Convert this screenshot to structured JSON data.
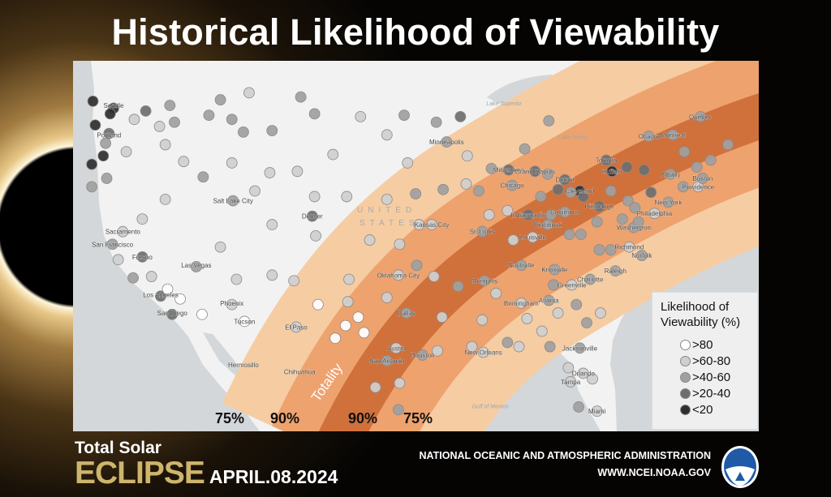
{
  "title": "Historical Likelihood of Viewability",
  "map": {
    "country_label_1": "UNITED",
    "country_label_2": "STATES",
    "water_labels": [
      {
        "name": "Lake Superior",
        "lon": -88.3,
        "lat": 47.6
      },
      {
        "name": "Lake Huron",
        "lon": -82.3,
        "lat": 45.2
      },
      {
        "name": "Gulf of Mexico",
        "lon": -89.5,
        "lat": 26.0
      }
    ],
    "band_labels": {
      "outer_left": "75%",
      "inner_left": "90%",
      "center": "Totality",
      "inner_right": "90%",
      "outer_right": "75%"
    },
    "band_colors": {
      "75": "#f6cca2",
      "90": "#eea26e",
      "totality": "#d0713c"
    },
    "land_color": "#f2f2f2",
    "water_color": "#d3d7d9",
    "cities": [
      {
        "name": "Seattle",
        "lon": -122.3,
        "lat": 47.6
      },
      {
        "name": "Portland",
        "lon": -122.7,
        "lat": 45.5
      },
      {
        "name": "Sacramento",
        "lon": -121.5,
        "lat": 38.6
      },
      {
        "name": "San Francisco",
        "lon": -122.4,
        "lat": 37.7
      },
      {
        "name": "Fresno",
        "lon": -119.8,
        "lat": 36.8
      },
      {
        "name": "Las Vegas",
        "lon": -115.1,
        "lat": 36.2
      },
      {
        "name": "Los Angeles",
        "lon": -118.2,
        "lat": 34.1
      },
      {
        "name": "San Diego",
        "lon": -117.2,
        "lat": 32.8
      },
      {
        "name": "Phoenix",
        "lon": -112.0,
        "lat": 33.5
      },
      {
        "name": "Tucson",
        "lon": -110.9,
        "lat": 32.2
      },
      {
        "name": "El Paso",
        "lon": -106.4,
        "lat": 31.8
      },
      {
        "name": "Hermosillo",
        "lon": -111.0,
        "lat": 29.1
      },
      {
        "name": "Chihuahua",
        "lon": -106.1,
        "lat": 28.6
      },
      {
        "name": "Salt Lake City",
        "lon": -111.9,
        "lat": 40.8
      },
      {
        "name": "Denver",
        "lon": -105.0,
        "lat": 39.7
      },
      {
        "name": "Minneapolis",
        "lon": -93.3,
        "lat": 45.0
      },
      {
        "name": "Kansas City",
        "lon": -94.6,
        "lat": 39.1
      },
      {
        "name": "St. Louis",
        "lon": -90.2,
        "lat": 38.6
      },
      {
        "name": "Oklahoma City",
        "lon": -97.5,
        "lat": 35.5
      },
      {
        "name": "Dallas",
        "lon": -96.8,
        "lat": 32.8
      },
      {
        "name": "Austin",
        "lon": -97.7,
        "lat": 30.3
      },
      {
        "name": "San Antonio",
        "lon": -98.5,
        "lat": 29.4
      },
      {
        "name": "Houston",
        "lon": -95.4,
        "lat": 29.8
      },
      {
        "name": "New Orleans",
        "lon": -90.1,
        "lat": 30.0
      },
      {
        "name": "Memphis",
        "lon": -90.0,
        "lat": 35.1
      },
      {
        "name": "Nashville",
        "lon": -86.8,
        "lat": 36.2
      },
      {
        "name": "Knoxville",
        "lon": -83.9,
        "lat": 35.9
      },
      {
        "name": "Birmingham",
        "lon": -86.8,
        "lat": 33.5
      },
      {
        "name": "Atlanta",
        "lon": -84.4,
        "lat": 33.7
      },
      {
        "name": "Charlotte",
        "lon": -80.8,
        "lat": 35.2
      },
      {
        "name": "Greenville",
        "lon": -82.4,
        "lat": 34.8
      },
      {
        "name": "Raleigh",
        "lon": -78.6,
        "lat": 35.8
      },
      {
        "name": "Richmond",
        "lon": -77.4,
        "lat": 37.5
      },
      {
        "name": "Norfolk",
        "lon": -76.3,
        "lat": 36.9
      },
      {
        "name": "Washington",
        "lon": -77.0,
        "lat": 38.9
      },
      {
        "name": "Philadelphia",
        "lon": -75.2,
        "lat": 39.9
      },
      {
        "name": "New York",
        "lon": -74.0,
        "lat": 40.7
      },
      {
        "name": "Providence",
        "lon": -71.4,
        "lat": 41.8
      },
      {
        "name": "Boston",
        "lon": -71.0,
        "lat": 42.4
      },
      {
        "name": "Albany",
        "lon": -73.8,
        "lat": 42.7
      },
      {
        "name": "Buffalo",
        "lon": -78.9,
        "lat": 42.9
      },
      {
        "name": "Toronto",
        "lon": -79.4,
        "lat": 43.7
      },
      {
        "name": "Ottawa",
        "lon": -75.7,
        "lat": 45.4
      },
      {
        "name": "Montreal",
        "lon": -73.6,
        "lat": 45.5
      },
      {
        "name": "Quebec",
        "lon": -71.2,
        "lat": 46.8
      },
      {
        "name": "Pittsburgh",
        "lon": -80.0,
        "lat": 40.4
      },
      {
        "name": "Cleveland",
        "lon": -81.7,
        "lat": 41.5
      },
      {
        "name": "Detroit",
        "lon": -83.0,
        "lat": 42.3
      },
      {
        "name": "Columbus",
        "lon": -83.0,
        "lat": 40.0
      },
      {
        "name": "Cincinnati",
        "lon": -84.5,
        "lat": 39.1
      },
      {
        "name": "Louisville",
        "lon": -85.8,
        "lat": 38.2
      },
      {
        "name": "Indianapolis",
        "lon": -86.2,
        "lat": 39.8
      },
      {
        "name": "Chicago",
        "lon": -87.6,
        "lat": 41.9
      },
      {
        "name": "Milwaukee",
        "lon": -87.9,
        "lat": 43.0
      },
      {
        "name": "Grand Rapids",
        "lon": -85.6,
        "lat": 42.9
      },
      {
        "name": "Jacksonville",
        "lon": -81.7,
        "lat": 30.3
      },
      {
        "name": "Orlando",
        "lon": -81.4,
        "lat": 28.5
      },
      {
        "name": "Tampa",
        "lon": -82.5,
        "lat": 27.9
      },
      {
        "name": "Miami",
        "lon": -80.2,
        "lat": 25.8
      }
    ],
    "stations_format": "lon, lat, likelihood category index",
    "stations": [
      [
        -124.1,
        47.9,
        4
      ],
      [
        -122.3,
        47.4,
        4
      ],
      [
        -122.6,
        47.0,
        4
      ],
      [
        -122.7,
        45.6,
        3
      ],
      [
        -123.9,
        46.2,
        4
      ],
      [
        -123.0,
        44.9,
        2
      ],
      [
        -123.2,
        44.0,
        4
      ],
      [
        -124.2,
        43.4,
        4
      ],
      [
        -124.2,
        41.8,
        2
      ],
      [
        -122.9,
        42.4,
        2
      ],
      [
        -117.4,
        47.6,
        2
      ],
      [
        -119.5,
        47.2,
        3
      ],
      [
        -120.5,
        46.6,
        1
      ],
      [
        -118.3,
        46.1,
        1
      ],
      [
        -117.0,
        46.4,
        2
      ],
      [
        -121.2,
        44.3,
        1
      ],
      [
        -117.8,
        44.8,
        1
      ],
      [
        -116.2,
        43.6,
        1
      ],
      [
        -112.0,
        43.5,
        1
      ],
      [
        -114.5,
        42.5,
        2
      ],
      [
        -117.8,
        40.9,
        1
      ],
      [
        -119.8,
        39.5,
        1
      ],
      [
        -121.5,
        38.6,
        1
      ],
      [
        -122.4,
        37.7,
        2
      ],
      [
        -121.9,
        36.6,
        1
      ],
      [
        -119.8,
        36.8,
        3
      ],
      [
        -120.6,
        35.3,
        2
      ],
      [
        -119.0,
        35.4,
        1
      ],
      [
        -118.2,
        34.0,
        3
      ],
      [
        -117.2,
        32.7,
        3
      ],
      [
        -116.5,
        33.8,
        0
      ],
      [
        -117.6,
        34.5,
        0
      ],
      [
        -115.1,
        36.1,
        2
      ],
      [
        -114.6,
        32.7,
        0
      ],
      [
        -112.0,
        33.4,
        1
      ],
      [
        -110.9,
        32.2,
        0
      ],
      [
        -111.6,
        35.2,
        1
      ],
      [
        -108.5,
        35.5,
        1
      ],
      [
        -106.6,
        35.1,
        1
      ],
      [
        -106.4,
        31.8,
        1
      ],
      [
        -104.5,
        33.4,
        0
      ],
      [
        -102.1,
        31.9,
        0
      ],
      [
        -101.8,
        35.2,
        1
      ],
      [
        -103.0,
        31.0,
        0
      ],
      [
        -101.0,
        32.5,
        0
      ],
      [
        -114.0,
        46.9,
        2
      ],
      [
        -112.0,
        46.6,
        2
      ],
      [
        -111.0,
        45.7,
        2
      ],
      [
        -108.5,
        45.8,
        2
      ],
      [
        -106.0,
        48.2,
        2
      ],
      [
        -104.8,
        47.0,
        2
      ],
      [
        -110.5,
        48.5,
        1
      ],
      [
        -113.0,
        48.0,
        2
      ],
      [
        -100.8,
        46.8,
        1
      ],
      [
        -97.0,
        46.9,
        2
      ],
      [
        -103.2,
        44.1,
        1
      ],
      [
        -98.5,
        45.5,
        1
      ],
      [
        -96.7,
        43.5,
        1
      ],
      [
        -106.3,
        42.9,
        1
      ],
      [
        -104.8,
        41.1,
        1
      ],
      [
        -108.7,
        42.8,
        1
      ],
      [
        -110.0,
        41.5,
        1
      ],
      [
        -105.0,
        39.7,
        3
      ],
      [
        -108.5,
        39.1,
        1
      ],
      [
        -104.7,
        38.3,
        1
      ],
      [
        -111.9,
        40.8,
        2
      ],
      [
        -113.0,
        37.5,
        1
      ],
      [
        -102.0,
        41.1,
        1
      ],
      [
        -98.5,
        40.9,
        1
      ],
      [
        -96.0,
        41.3,
        2
      ],
      [
        -100.0,
        38.0,
        1
      ],
      [
        -97.4,
        37.7,
        1
      ],
      [
        -95.7,
        39.1,
        1
      ],
      [
        -94.6,
        39.1,
        1
      ],
      [
        -97.5,
        35.5,
        1
      ],
      [
        -95.9,
        36.2,
        2
      ],
      [
        -98.5,
        33.9,
        1
      ],
      [
        -101.9,
        33.6,
        1
      ],
      [
        -96.8,
        32.8,
        2
      ],
      [
        -97.7,
        30.3,
        1
      ],
      [
        -98.5,
        29.4,
        2
      ],
      [
        -95.4,
        29.8,
        2
      ],
      [
        -99.5,
        27.5,
        1
      ],
      [
        -97.5,
        25.9,
        2
      ],
      [
        -97.4,
        27.8,
        1
      ],
      [
        -100.5,
        31.4,
        0
      ],
      [
        -94.1,
        30.1,
        1
      ],
      [
        -93.7,
        32.5,
        1
      ],
      [
        -93.3,
        45.0,
        2
      ],
      [
        -92.1,
        46.8,
        3
      ],
      [
        -94.2,
        46.4,
        2
      ],
      [
        -91.5,
        44.0,
        1
      ],
      [
        -93.6,
        41.6,
        2
      ],
      [
        -91.6,
        42.0,
        1
      ],
      [
        -90.5,
        41.5,
        2
      ],
      [
        -89.4,
        43.1,
        2
      ],
      [
        -87.9,
        43.0,
        3
      ],
      [
        -87.6,
        41.9,
        2
      ],
      [
        -85.6,
        42.9,
        3
      ],
      [
        -84.5,
        42.7,
        2
      ],
      [
        -83.0,
        42.3,
        3
      ],
      [
        -84.4,
        46.5,
        2
      ],
      [
        -86.5,
        44.5,
        2
      ],
      [
        -89.6,
        39.8,
        1
      ],
      [
        -90.2,
        38.6,
        2
      ],
      [
        -88.0,
        40.1,
        1
      ],
      [
        -86.2,
        39.8,
        3
      ],
      [
        -85.1,
        41.1,
        2
      ],
      [
        -84.5,
        39.1,
        2
      ],
      [
        -83.0,
        40.0,
        2
      ],
      [
        -81.7,
        41.5,
        4
      ],
      [
        -80.0,
        40.4,
        3
      ],
      [
        -85.8,
        38.2,
        1
      ],
      [
        -87.5,
        38.0,
        1
      ],
      [
        -90.0,
        35.1,
        2
      ],
      [
        -86.8,
        36.2,
        2
      ],
      [
        -83.9,
        35.9,
        2
      ],
      [
        -86.8,
        33.5,
        1
      ],
      [
        -84.4,
        33.7,
        2
      ],
      [
        -80.8,
        35.2,
        2
      ],
      [
        -82.4,
        34.8,
        1
      ],
      [
        -78.6,
        35.8,
        2
      ],
      [
        -76.3,
        36.9,
        2
      ],
      [
        -77.4,
        37.5,
        1
      ],
      [
        -90.1,
        30.0,
        1
      ],
      [
        -88.0,
        30.7,
        2
      ],
      [
        -91.1,
        30.4,
        1
      ],
      [
        -90.2,
        32.3,
        1
      ],
      [
        -92.3,
        34.7,
        2
      ],
      [
        -94.4,
        35.4,
        1
      ],
      [
        -84.3,
        30.4,
        2
      ],
      [
        -81.7,
        30.3,
        2
      ],
      [
        -81.4,
        28.5,
        1
      ],
      [
        -82.5,
        27.9,
        1
      ],
      [
        -80.2,
        25.8,
        1
      ],
      [
        -81.8,
        26.1,
        2
      ],
      [
        -80.6,
        28.1,
        1
      ],
      [
        -81.1,
        32.1,
        2
      ],
      [
        -79.9,
        32.8,
        1
      ],
      [
        -82.0,
        33.4,
        2
      ],
      [
        -83.6,
        32.8,
        1
      ],
      [
        -85.0,
        31.5,
        1
      ],
      [
        -86.3,
        32.4,
        1
      ],
      [
        -89.0,
        34.2,
        1
      ],
      [
        -87.0,
        30.4,
        1
      ],
      [
        -82.7,
        28.9,
        1
      ],
      [
        -84.0,
        34.8,
        2
      ],
      [
        -77.0,
        38.9,
        2
      ],
      [
        -76.6,
        39.3,
        2
      ],
      [
        -75.2,
        39.9,
        1
      ],
      [
        -74.0,
        40.7,
        2
      ],
      [
        -72.7,
        41.8,
        2
      ],
      [
        -71.4,
        41.8,
        1
      ],
      [
        -71.0,
        42.4,
        2
      ],
      [
        -73.8,
        42.7,
        2
      ],
      [
        -76.1,
        43.0,
        3
      ],
      [
        -77.6,
        43.2,
        3
      ],
      [
        -78.9,
        42.9,
        4
      ],
      [
        -79.4,
        43.7,
        3
      ],
      [
        -75.7,
        45.4,
        2
      ],
      [
        -73.6,
        45.5,
        2
      ],
      [
        -71.2,
        46.8,
        2
      ],
      [
        -70.3,
        43.7,
        2
      ],
      [
        -68.8,
        44.8,
        2
      ],
      [
        -72.6,
        44.3,
        2
      ],
      [
        -71.5,
        43.2,
        2
      ],
      [
        -77.5,
        40.8,
        2
      ],
      [
        -76.9,
        40.3,
        2
      ],
      [
        -75.5,
        41.4,
        3
      ],
      [
        -79.0,
        41.5,
        2
      ],
      [
        -82.6,
        38.4,
        2
      ],
      [
        -81.6,
        38.4,
        2
      ],
      [
        -80.2,
        39.3,
        2
      ],
      [
        -78.0,
        39.5,
        2
      ],
      [
        -79.0,
        37.3,
        2
      ],
      [
        -80.0,
        37.3,
        2
      ],
      [
        -82.5,
        41.4,
        2
      ],
      [
        -81.4,
        41.1,
        3
      ],
      [
        -83.6,
        41.6,
        3
      ],
      [
        -84.2,
        39.8,
        2
      ]
    ]
  },
  "legend": {
    "title_1": "Likelihood of",
    "title_2": "Viewability (%)",
    "items": [
      {
        "label": ">80",
        "color": "#ffffff"
      },
      {
        "label": ">60-80",
        "color": "#cfcfcf"
      },
      {
        "label": ">40-60",
        "color": "#a0a0a0"
      },
      {
        "label": ">20-40",
        "color": "#6e6e6e"
      },
      {
        "label": "<20",
        "color": "#2e2e2e"
      }
    ]
  },
  "footer": {
    "line1": "Total Solar",
    "line2": "ECLIPSE",
    "date": "APRIL.08.2024",
    "agency": "NATIONAL OCEANIC AND ATMOSPHERIC ADMINISTRATION",
    "website": "WWW.NCEI.NOAA.GOV",
    "logo_text": "NOAA"
  }
}
